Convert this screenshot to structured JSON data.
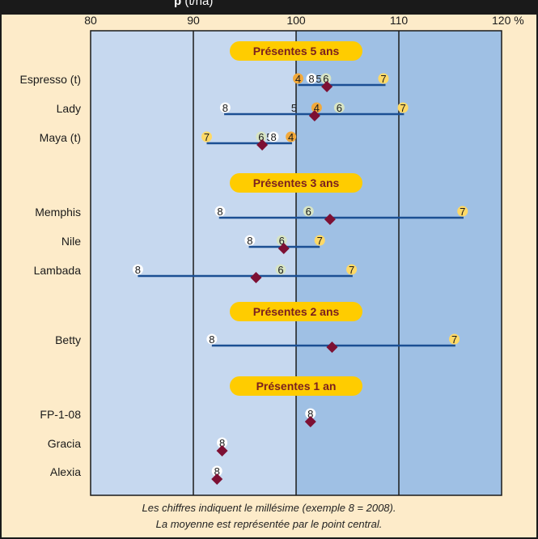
{
  "chart_data": {
    "type": "range",
    "title": "",
    "xlabel": "",
    "ylabel": "",
    "xlim": [
      80,
      120
    ],
    "x_ticks": [
      "80",
      "90",
      "100",
      "110",
      "120 %"
    ],
    "groups": [
      {
        "label": "Présentes 5 ans",
        "varieties": [
          {
            "name": "Espresso (t)",
            "mean": 103.0,
            "min": 100.2,
            "max": 108.7,
            "years": [
              {
                "label": "4",
                "value": 100.2,
                "kind": "orange"
              },
              {
                "label": "8",
                "value": 101.5,
                "kind": "white"
              },
              {
                "label": "5",
                "value": 102.2,
                "kind": "none"
              },
              {
                "label": "6",
                "value": 102.9,
                "kind": "green"
              },
              {
                "label": "7",
                "value": 108.5,
                "kind": "yellow"
              }
            ]
          },
          {
            "name": "Lady",
            "mean": 101.8,
            "min": 93.0,
            "max": 110.5,
            "years": [
              {
                "label": "8",
                "value": 93.1,
                "kind": "white"
              },
              {
                "label": "5",
                "value": 99.8,
                "kind": "none"
              },
              {
                "label": "4",
                "value": 102.0,
                "kind": "orange"
              },
              {
                "label": "6",
                "value": 104.2,
                "kind": "green"
              },
              {
                "label": "7",
                "value": 110.4,
                "kind": "yellow"
              }
            ]
          },
          {
            "name": "Maya (t)",
            "mean": 96.7,
            "min": 91.3,
            "max": 99.6,
            "years": [
              {
                "label": "7",
                "value": 91.3,
                "kind": "yellow"
              },
              {
                "label": "6",
                "value": 96.6,
                "kind": "green"
              },
              {
                "label": "5",
                "value": 97.4,
                "kind": "none"
              },
              {
                "label": "8",
                "value": 97.8,
                "kind": "white"
              },
              {
                "label": "4",
                "value": 99.5,
                "kind": "orange"
              }
            ]
          }
        ]
      },
      {
        "label": "Présentes 3 ans",
        "varieties": [
          {
            "name": "Memphis",
            "mean": 103.3,
            "min": 92.5,
            "max": 116.3,
            "years": [
              {
                "label": "8",
                "value": 92.6,
                "kind": "white"
              },
              {
                "label": "6",
                "value": 101.2,
                "kind": "green"
              },
              {
                "label": "7",
                "value": 116.2,
                "kind": "yellow"
              }
            ]
          },
          {
            "name": "Nile",
            "mean": 98.8,
            "min": 95.4,
            "max": 102.3,
            "years": [
              {
                "label": "8",
                "value": 95.5,
                "kind": "white"
              },
              {
                "label": "6",
                "value": 98.6,
                "kind": "green"
              },
              {
                "label": "7",
                "value": 102.3,
                "kind": "yellow"
              }
            ]
          },
          {
            "name": "Lambada",
            "mean": 96.1,
            "min": 84.6,
            "max": 105.5,
            "years": [
              {
                "label": "8",
                "value": 84.6,
                "kind": "white"
              },
              {
                "label": "6",
                "value": 98.5,
                "kind": "green"
              },
              {
                "label": "7",
                "value": 105.4,
                "kind": "yellow"
              }
            ]
          }
        ]
      },
      {
        "label": "Présentes 2 ans",
        "varieties": [
          {
            "name": "Betty",
            "mean": 103.5,
            "min": 91.8,
            "max": 115.5,
            "years": [
              {
                "label": "8",
                "value": 91.8,
                "kind": "white"
              },
              {
                "label": "7",
                "value": 115.4,
                "kind": "yellow"
              }
            ]
          }
        ]
      },
      {
        "label": "Présentes 1 an",
        "varieties": [
          {
            "name": "FP-1-08",
            "mean": 101.4,
            "min": 101.4,
            "max": 101.4,
            "years": [
              {
                "label": "8",
                "value": 101.4,
                "kind": "white"
              }
            ]
          },
          {
            "name": "Gracia",
            "mean": 92.8,
            "min": 92.8,
            "max": 92.8,
            "years": [
              {
                "label": "8",
                "value": 92.8,
                "kind": "white"
              }
            ]
          },
          {
            "name": "Alexia",
            "mean": 92.3,
            "min": 92.3,
            "max": 92.3,
            "years": [
              {
                "label": "8",
                "value": 92.3,
                "kind": "white"
              }
            ]
          }
        ]
      }
    ],
    "grid": true,
    "legend": "none"
  },
  "title_fragment": "p",
  "title_suffix": "(t/ha)",
  "footnote_line1": "Les chiffres indiquent le millésime (exemple 8 = 2008).",
  "footnote_line2": "La moyenne est représentée par le point central.",
  "colors": {
    "background": "#fdebc9",
    "band_light": "#c6d8ef",
    "band_dark": "#9fc0e4",
    "range_line": "#1b4f93",
    "mean_marker": "#7d1033",
    "group_label_bg": "#ffcc00",
    "group_label_text": "#7a1f1f",
    "year_orange": "#f2a93b",
    "year_yellow": "#ffd966",
    "year_green": "#d7e4c4",
    "year_white": "#ffffff"
  }
}
